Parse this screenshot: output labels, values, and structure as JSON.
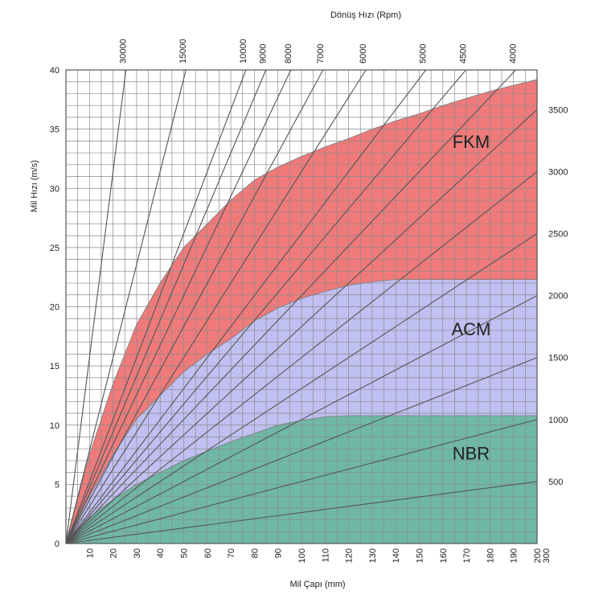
{
  "chart_data": {
    "type": "area",
    "title": "",
    "xlabel": "Mil Çapı (mm)",
    "ylabel": "Mil Hızı (m/s)",
    "top_axis_label": "Dönüş Hızı (Rpm)",
    "xlim": [
      0,
      200
    ],
    "ylim": [
      0,
      40
    ],
    "x_ticks": [
      10,
      20,
      30,
      40,
      50,
      60,
      70,
      80,
      90,
      100,
      110,
      120,
      130,
      140,
      150,
      160,
      170,
      180,
      190,
      200
    ],
    "x_tick_labels": [
      "10",
      "20",
      "30",
      "40",
      "50",
      "60",
      "70",
      "80",
      "90",
      "100",
      "110",
      "120",
      "130",
      "140",
      "150",
      "160",
      "170",
      "180",
      "190",
      "200"
    ],
    "x_extra_label": "300",
    "y_ticks": [
      0,
      5,
      10,
      15,
      20,
      25,
      30,
      35,
      40
    ],
    "y_tick_labels": [
      "0",
      "5",
      "10",
      "15",
      "20",
      "25",
      "30",
      "35",
      "40"
    ],
    "rpm_lines": [
      {
        "rpm": 30000,
        "label": "30000"
      },
      {
        "rpm": 15000,
        "label": "15000"
      },
      {
        "rpm": 10000,
        "label": "10000"
      },
      {
        "rpm": 9000,
        "label": "9000"
      },
      {
        "rpm": 8000,
        "label": "8000"
      },
      {
        "rpm": 7000,
        "label": "7000"
      },
      {
        "rpm": 6000,
        "label": "6000"
      },
      {
        "rpm": 5000,
        "label": "5000"
      },
      {
        "rpm": 4500,
        "label": "4500"
      },
      {
        "rpm": 4000,
        "label": "4000"
      },
      {
        "rpm": 3500,
        "label": "3500"
      },
      {
        "rpm": 3000,
        "label": "3000"
      },
      {
        "rpm": 2500,
        "label": "2500"
      },
      {
        "rpm": 2000,
        "label": "2000"
      },
      {
        "rpm": 1500,
        "label": "1500"
      },
      {
        "rpm": 1000,
        "label": "1000"
      },
      {
        "rpm": 500,
        "label": "500"
      }
    ],
    "series": [
      {
        "name": "FKM",
        "color": "#f07a7a",
        "x": [
          0,
          10,
          20,
          30,
          40,
          50,
          60,
          70,
          80,
          90,
          100,
          110,
          120,
          130,
          140,
          150,
          160,
          170,
          180,
          190,
          200
        ],
        "upper": [
          0,
          7.5,
          13.5,
          18.5,
          22,
          25,
          27,
          29,
          30.7,
          31.8,
          32.7,
          33.5,
          34.2,
          35,
          35.7,
          36.3,
          37,
          37.6,
          38.2,
          38.7,
          39.2
        ]
      },
      {
        "name": "ACM",
        "color": "#c0c0f2",
        "x": [
          0,
          10,
          20,
          30,
          40,
          50,
          60,
          70,
          80,
          90,
          100,
          110,
          120,
          130,
          140,
          150,
          160,
          170,
          180,
          190,
          200
        ],
        "upper": [
          0,
          4,
          7.5,
          10.5,
          12.5,
          14.5,
          16,
          17.3,
          18.8,
          19.9,
          20.7,
          21.3,
          21.8,
          22.1,
          22.3,
          22.3,
          22.3,
          22.3,
          22.3,
          22.3,
          22.3
        ]
      },
      {
        "name": "NBR",
        "color": "#6fb8a6",
        "x": [
          0,
          10,
          20,
          30,
          40,
          50,
          60,
          70,
          80,
          90,
          100,
          110,
          120,
          130,
          140,
          150,
          160,
          170,
          180,
          190,
          200
        ],
        "upper": [
          0,
          2.2,
          3.7,
          5,
          6,
          7,
          7.8,
          8.6,
          9.3,
          10,
          10.4,
          10.7,
          10.8,
          10.8,
          10.8,
          10.8,
          10.8,
          10.8,
          10.8,
          10.8,
          10.8
        ]
      }
    ]
  }
}
